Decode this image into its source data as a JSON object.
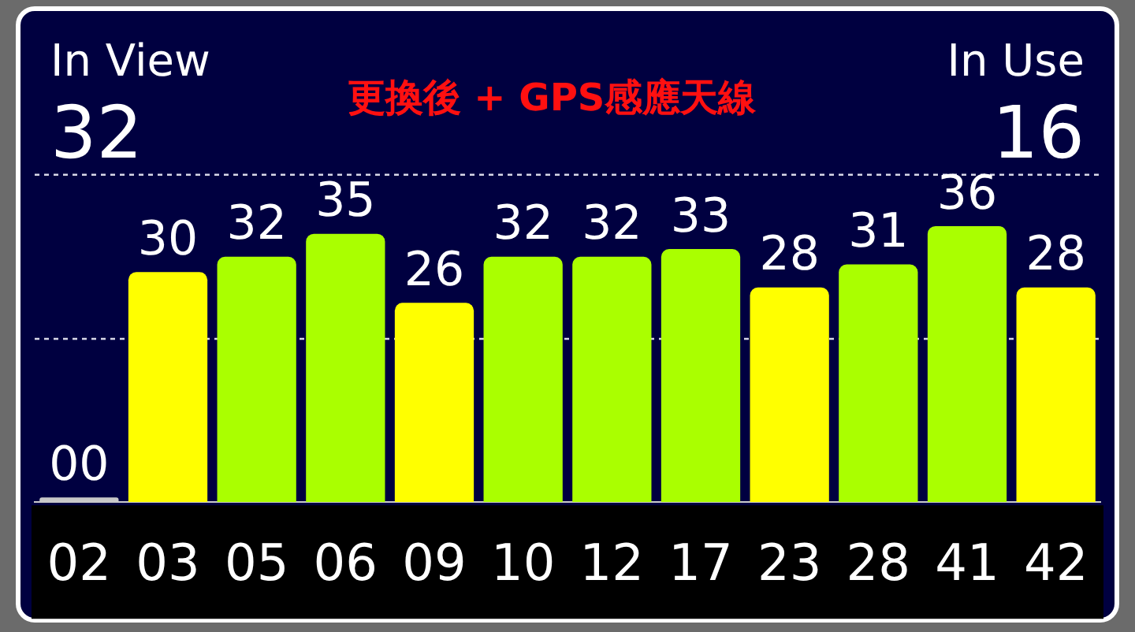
{
  "chart_data": {
    "type": "bar",
    "title": "更換後 + GPS感應天線",
    "annotations": [
      "In View",
      "32",
      "In Use",
      "16"
    ],
    "categories": [
      "02",
      "03",
      "05",
      "06",
      "09",
      "10",
      "12",
      "17",
      "23",
      "28",
      "41",
      "42"
    ],
    "values": [
      0,
      30,
      32,
      35,
      26,
      32,
      32,
      33,
      28,
      31,
      36,
      28
    ],
    "value_labels": [
      "00",
      "30",
      "32",
      "35",
      "26",
      "32",
      "32",
      "33",
      "28",
      "31",
      "36",
      "28"
    ],
    "colors": [
      "#c8c8c8",
      "#ffff00",
      "#aaff00",
      "#aaff00",
      "#ffff00",
      "#aaff00",
      "#aaff00",
      "#aaff00",
      "#ffff00",
      "#aaff00",
      "#aaff00",
      "#ffff00"
    ],
    "ref_lines": [
      {
        "axis": "y",
        "value": 21.3,
        "line_style": "dashed",
        "color": "#d8d8e8"
      },
      {
        "axis": "y",
        "value": 42.7,
        "line_style": "dashed",
        "color": "#d8d8e8"
      }
    ],
    "legend": false
  }
}
